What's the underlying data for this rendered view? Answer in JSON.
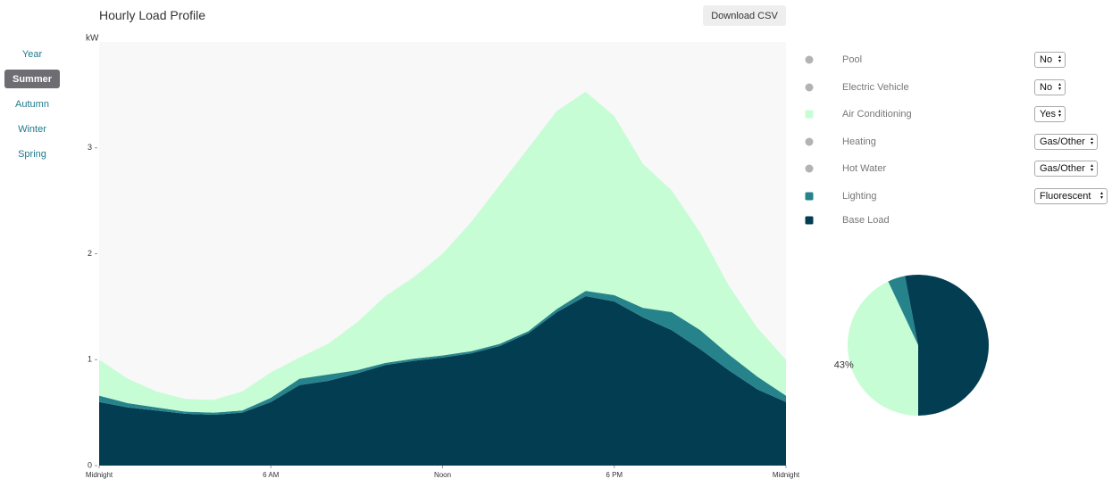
{
  "title": "Hourly Load Profile",
  "download_button": "Download CSV",
  "sidebar": {
    "items": [
      "Year",
      "Summer",
      "Autumn",
      "Winter",
      "Spring"
    ],
    "selected": 1
  },
  "other_loads": [
    {
      "name": "Pool",
      "color": "#b3b3b3",
      "setting": "No"
    },
    {
      "name": "Electric Vehicle",
      "color": "#b3b3b3",
      "setting": "No"
    },
    {
      "name": "Heating",
      "color": "#b3b3b3",
      "setting": "Gas/Other"
    },
    {
      "name": "Hot Water",
      "color": "#b3b3b3",
      "setting": "Gas/Other"
    }
  ],
  "chart_data": [
    {
      "type": "area",
      "stacked": true,
      "y_label": "kW",
      "x": [
        0,
        1,
        2,
        3,
        4,
        5,
        6,
        7,
        8,
        9,
        10,
        11,
        12,
        13,
        14,
        15,
        16,
        17,
        18,
        19,
        20,
        21,
        22,
        23,
        24
      ],
      "xlim": [
        0,
        24
      ],
      "xticks": [
        {
          "value": 0,
          "label": "Midnight"
        },
        {
          "value": 6,
          "label": "6 AM"
        },
        {
          "value": 12,
          "label": "Noon"
        },
        {
          "value": 18,
          "label": "6 PM"
        },
        {
          "value": 24,
          "label": "Midnight"
        }
      ],
      "ylim": [
        0,
        4
      ],
      "yticks": [
        0,
        1,
        2,
        3
      ],
      "series": [
        {
          "name": "Base Load",
          "color": "#023d52",
          "values": [
            0.6,
            0.55,
            0.52,
            0.49,
            0.48,
            0.5,
            0.6,
            0.76,
            0.8,
            0.87,
            0.95,
            0.99,
            1.02,
            1.06,
            1.13,
            1.25,
            1.45,
            1.6,
            1.55,
            1.4,
            1.28,
            1.1,
            0.9,
            0.72,
            0.6
          ]
        },
        {
          "name": "Lighting",
          "color": "#26838b",
          "setting": "Fluorescent",
          "values": [
            0.06,
            0.04,
            0.03,
            0.02,
            0.02,
            0.02,
            0.04,
            0.06,
            0.06,
            0.03,
            0.02,
            0.02,
            0.02,
            0.02,
            0.02,
            0.02,
            0.03,
            0.05,
            0.06,
            0.09,
            0.17,
            0.18,
            0.15,
            0.12,
            0.06
          ]
        },
        {
          "name": "Air Conditioning",
          "color": "#c6fdd5",
          "setting": "Yes",
          "values": [
            0.34,
            0.23,
            0.15,
            0.12,
            0.12,
            0.18,
            0.24,
            0.2,
            0.29,
            0.45,
            0.63,
            0.77,
            0.96,
            1.22,
            1.5,
            1.73,
            1.87,
            1.88,
            1.69,
            1.36,
            1.15,
            0.92,
            0.65,
            0.46,
            0.34
          ]
        }
      ]
    },
    {
      "type": "pie",
      "values": [
        43,
        4,
        53
      ],
      "colors": [
        "#c6fdd5",
        "#26838b",
        "#023d52"
      ],
      "value_labels": [
        "43%",
        null,
        null
      ]
    }
  ]
}
